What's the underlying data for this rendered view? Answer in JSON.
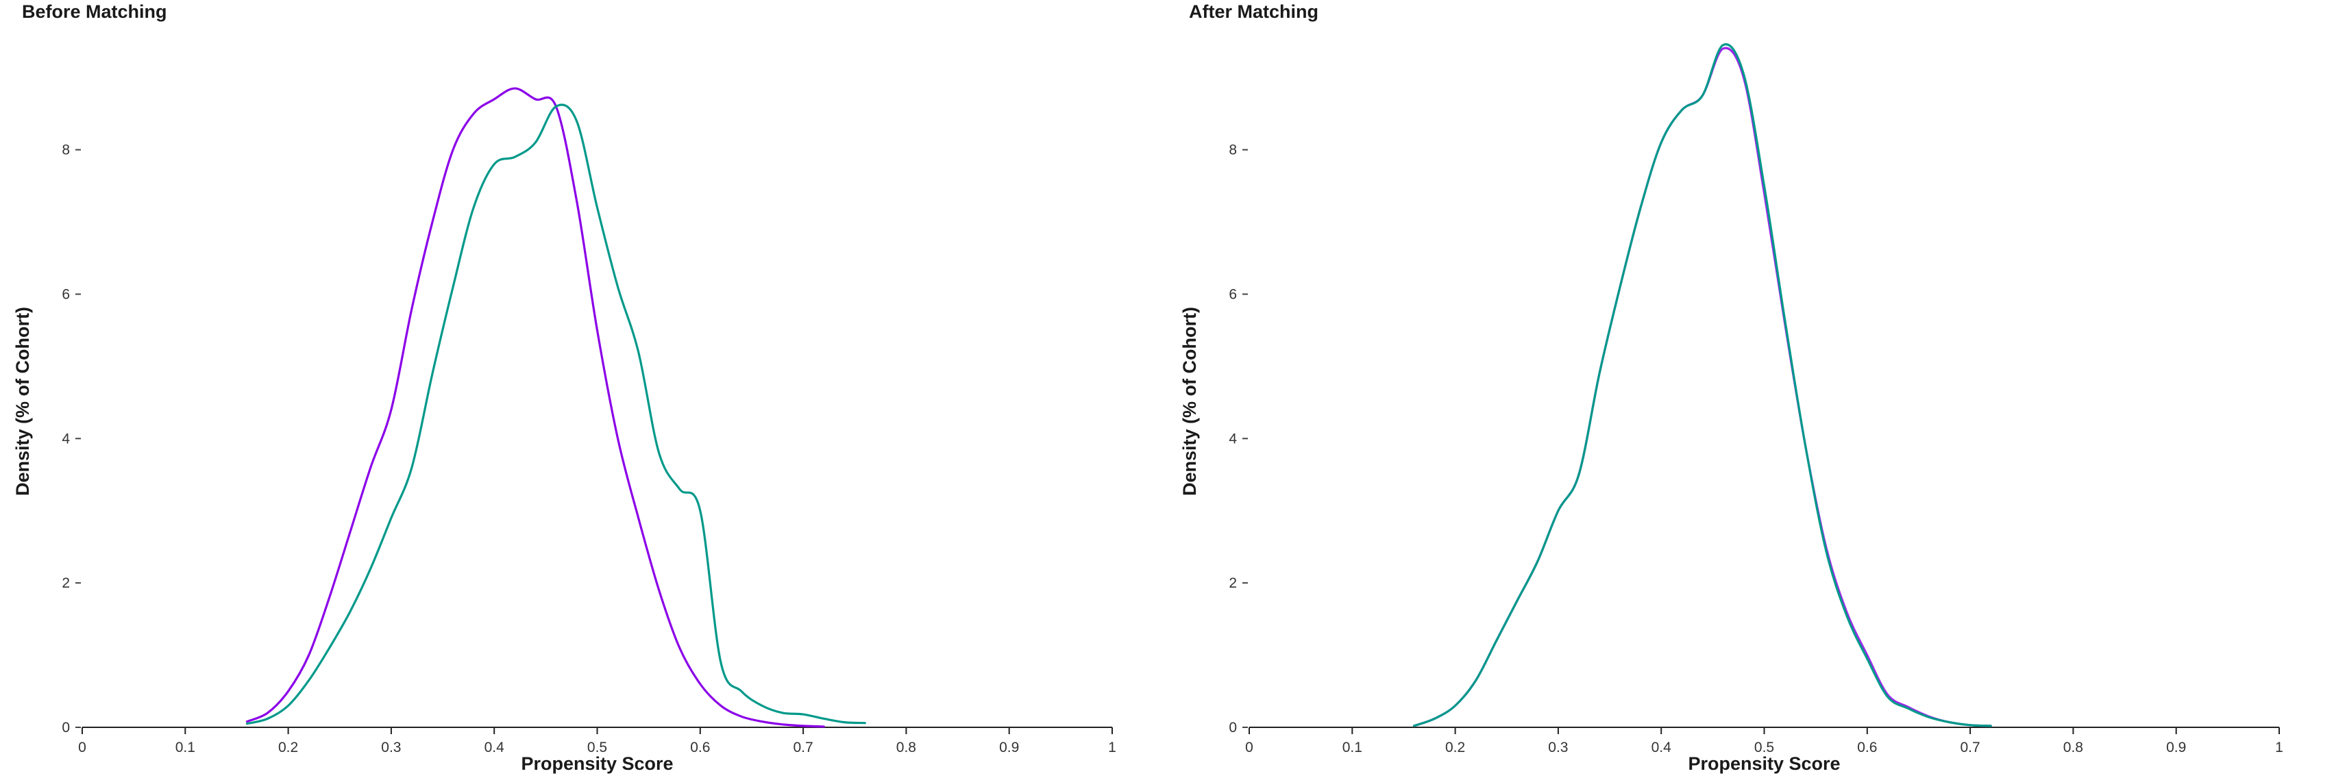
{
  "chart_data": [
    {
      "type": "line",
      "title": "Before Matching",
      "xlabel": "Propensity Score",
      "ylabel": "Density (% of Cohort)",
      "xlim": [
        0,
        1
      ],
      "ylim": [
        0,
        9.6
      ],
      "xticks": [
        "0",
        "0.1",
        "0.2",
        "0.3",
        "0.4",
        "0.5",
        "0.6",
        "0.7",
        "0.8",
        "0.9",
        "1"
      ],
      "yticks": [
        "0",
        "2",
        "4",
        "6",
        "8"
      ],
      "grid": false,
      "legend": "none",
      "series": [
        {
          "color": "#8b00e8",
          "x": [
            0.16,
            0.18,
            0.2,
            0.22,
            0.24,
            0.26,
            0.28,
            0.3,
            0.32,
            0.34,
            0.36,
            0.38,
            0.4,
            0.42,
            0.44,
            0.46,
            0.48,
            0.5,
            0.52,
            0.54,
            0.56,
            0.58,
            0.6,
            0.62,
            0.64,
            0.66,
            0.68,
            0.7,
            0.72
          ],
          "y": [
            0.08,
            0.2,
            0.5,
            1.0,
            1.8,
            2.7,
            3.6,
            4.4,
            5.8,
            7.0,
            8.0,
            8.5,
            8.7,
            8.85,
            8.7,
            8.6,
            7.3,
            5.5,
            4.0,
            2.9,
            1.9,
            1.1,
            0.6,
            0.3,
            0.15,
            0.08,
            0.04,
            0.02,
            0.01
          ]
        },
        {
          "color": "#00998a",
          "x": [
            0.16,
            0.18,
            0.2,
            0.22,
            0.24,
            0.26,
            0.28,
            0.3,
            0.32,
            0.34,
            0.36,
            0.38,
            0.4,
            0.42,
            0.44,
            0.46,
            0.48,
            0.5,
            0.52,
            0.54,
            0.56,
            0.58,
            0.6,
            0.62,
            0.64,
            0.66,
            0.68,
            0.7,
            0.72,
            0.74,
            0.76
          ],
          "y": [
            0.05,
            0.12,
            0.3,
            0.65,
            1.1,
            1.6,
            2.2,
            2.9,
            3.6,
            4.9,
            6.1,
            7.2,
            7.8,
            7.9,
            8.1,
            8.6,
            8.4,
            7.2,
            6.1,
            5.2,
            3.8,
            3.3,
            3.0,
            0.9,
            0.5,
            0.3,
            0.2,
            0.18,
            0.12,
            0.07,
            0.06
          ]
        }
      ]
    },
    {
      "type": "line",
      "title": "After Matching",
      "xlabel": "Propensity Score",
      "ylabel": "Density (% of Cohort)",
      "xlim": [
        0,
        1
      ],
      "ylim": [
        0,
        9.6
      ],
      "xticks": [
        "0",
        "0.1",
        "0.2",
        "0.3",
        "0.4",
        "0.5",
        "0.6",
        "0.7",
        "0.8",
        "0.9",
        "1"
      ],
      "yticks": [
        "0",
        "2",
        "4",
        "6",
        "8"
      ],
      "grid": false,
      "legend": "none",
      "series": [
        {
          "color": "#8b00e8",
          "x": [
            0.16,
            0.18,
            0.2,
            0.22,
            0.24,
            0.26,
            0.28,
            0.3,
            0.32,
            0.34,
            0.36,
            0.38,
            0.4,
            0.42,
            0.44,
            0.46,
            0.48,
            0.5,
            0.52,
            0.54,
            0.56,
            0.58,
            0.6,
            0.62,
            0.64,
            0.66,
            0.68,
            0.7,
            0.72
          ],
          "y": [
            0.02,
            0.12,
            0.3,
            0.65,
            1.2,
            1.75,
            2.3,
            3.0,
            3.5,
            4.9,
            6.1,
            7.2,
            8.1,
            8.55,
            8.75,
            9.4,
            9.0,
            7.4,
            5.6,
            3.9,
            2.5,
            1.6,
            1.0,
            0.45,
            0.28,
            0.15,
            0.07,
            0.03,
            0.02
          ]
        },
        {
          "color": "#00998a",
          "x": [
            0.16,
            0.18,
            0.2,
            0.22,
            0.24,
            0.26,
            0.28,
            0.3,
            0.32,
            0.34,
            0.36,
            0.38,
            0.4,
            0.42,
            0.44,
            0.46,
            0.48,
            0.5,
            0.52,
            0.54,
            0.56,
            0.58,
            0.6,
            0.62,
            0.64,
            0.66,
            0.68,
            0.7,
            0.72
          ],
          "y": [
            0.02,
            0.12,
            0.3,
            0.65,
            1.2,
            1.75,
            2.3,
            3.0,
            3.5,
            4.9,
            6.1,
            7.2,
            8.1,
            8.55,
            8.75,
            9.45,
            9.05,
            7.5,
            5.65,
            3.9,
            2.45,
            1.55,
            0.95,
            0.42,
            0.26,
            0.14,
            0.07,
            0.03,
            0.02
          ]
        }
      ]
    }
  ]
}
